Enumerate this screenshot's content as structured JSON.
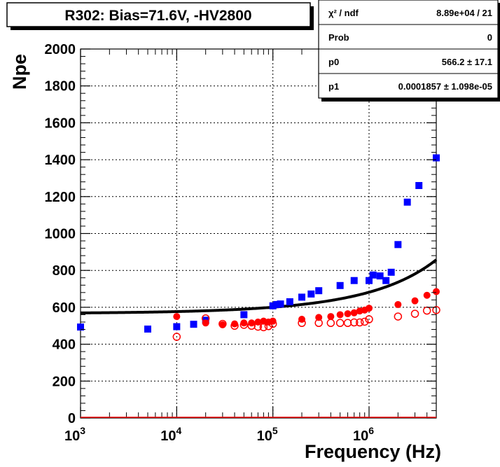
{
  "chart_data": {
    "type": "scatter",
    "title": "R302: Bias=71.6V, -HV2800",
    "xlabel": "Frequency (Hz)",
    "ylabel": "Npe",
    "x_scale": "log",
    "xlim": [
      1000,
      5000000
    ],
    "ylim": [
      0,
      2000
    ],
    "y_ticks": [
      "0",
      "200",
      "400",
      "600",
      "800",
      "1000",
      "1200",
      "1400",
      "1600",
      "1800",
      "2000"
    ],
    "x_tick_bases": [
      "10",
      "10",
      "10",
      "10"
    ],
    "x_tick_exponents": [
      "3",
      "4",
      "5",
      "6"
    ],
    "x_tick_values": [
      1000,
      10000,
      100000,
      1000000
    ],
    "grid": true,
    "series": [
      {
        "marker": "filled-square",
        "color": "#0000ff",
        "x": [
          1000,
          5000,
          10000,
          15000,
          20000,
          50000,
          100000,
          110000,
          120000,
          150000,
          200000,
          250000,
          300000,
          500000,
          700000,
          1000000,
          1100000,
          1300000,
          1500000,
          1700000,
          2000000,
          2500000,
          3300000,
          5000000
        ],
        "y": [
          493,
          482,
          495,
          508,
          530,
          560,
          608,
          615,
          618,
          630,
          655,
          672,
          690,
          718,
          745,
          745,
          775,
          770,
          745,
          790,
          940,
          1170,
          1260,
          1410
        ]
      },
      {
        "marker": "filled-circle",
        "color": "#ff0000",
        "x": [
          10000,
          20000,
          30000,
          40000,
          50000,
          60000,
          70000,
          80000,
          90000,
          100000,
          200000,
          300000,
          400000,
          500000,
          600000,
          700000,
          800000,
          900000,
          1000000,
          2000000,
          3000000,
          4000000,
          5000000
        ],
        "y": [
          550,
          515,
          505,
          510,
          515,
          515,
          520,
          525,
          520,
          525,
          535,
          545,
          550,
          560,
          565,
          570,
          580,
          585,
          595,
          615,
          635,
          665,
          685
        ]
      },
      {
        "marker": "open-circle",
        "color": "#ff0000",
        "x": [
          10000,
          20000,
          30000,
          40000,
          50000,
          60000,
          70000,
          80000,
          90000,
          100000,
          200000,
          300000,
          400000,
          500000,
          600000,
          700000,
          800000,
          900000,
          1000000,
          2000000,
          3000000,
          4000000,
          5000000
        ],
        "y": [
          440,
          540,
          510,
          500,
          505,
          500,
          495,
          492,
          498,
          510,
          515,
          515,
          515,
          515,
          515,
          518,
          518,
          522,
          535,
          550,
          565,
          582,
          585
        ]
      }
    ],
    "fit": {
      "color": "#000000",
      "formula": "p0*exp(p1*sqrt(x))",
      "p0": 566.2,
      "p1": 0.0001857
    },
    "stats_box": {
      "rows": [
        {
          "label": "χ² / ndf",
          "value": "8.89e+04 / 21"
        },
        {
          "label": "Prob",
          "value": "0"
        },
        {
          "label": "p0",
          "value": "566.2 ±  17.1"
        },
        {
          "label": "p1",
          "value": "0.0001857 ± 1.098e-05"
        }
      ]
    }
  }
}
